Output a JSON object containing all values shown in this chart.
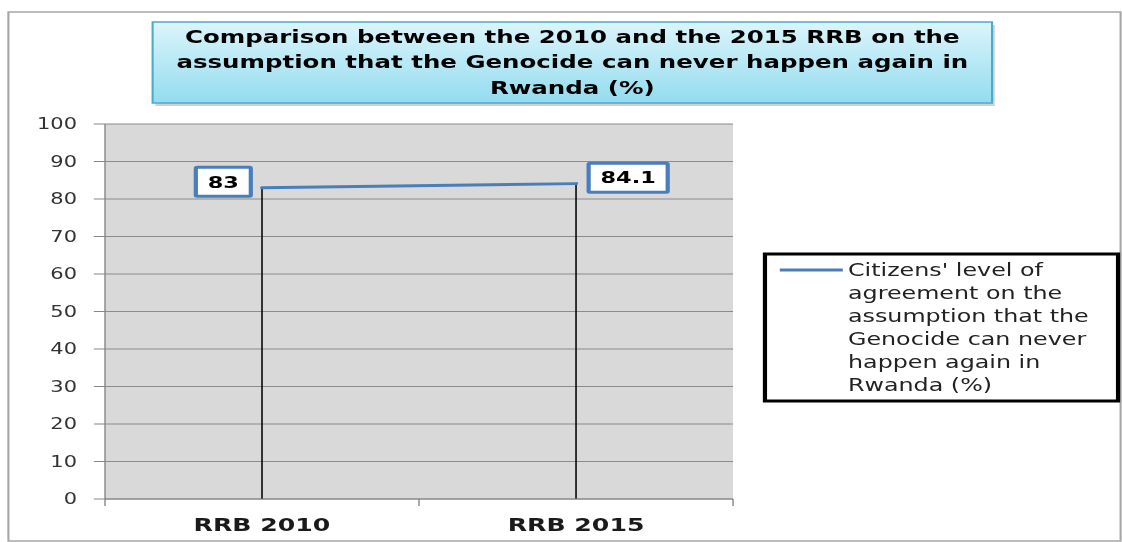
{
  "chart_data": {
    "type": "line",
    "title": "Comparison between the 2010 and the 2015 RRB on the assumption that the Genocide can never happen again in Rwanda (%)",
    "categories": [
      "RRB 2010",
      "RRB 2015"
    ],
    "series": [
      {
        "name": "Citizens' level of agreement on the assumption that the Genocide can never happen again in Rwanda (%)",
        "color": "#4a7ebb",
        "values": [
          83,
          84.1
        ]
      }
    ],
    "ylim": [
      0,
      100
    ],
    "yticks": [
      0,
      10,
      20,
      30,
      40,
      50,
      60,
      70,
      80,
      90,
      100
    ],
    "grid": "y",
    "legend": "right",
    "data_labels": true,
    "ref_lines": [
      {
        "axis": "x",
        "value": "RRB 2010",
        "color": "#000000"
      },
      {
        "axis": "x",
        "value": "RRB 2015",
        "color": "#000000"
      }
    ]
  }
}
